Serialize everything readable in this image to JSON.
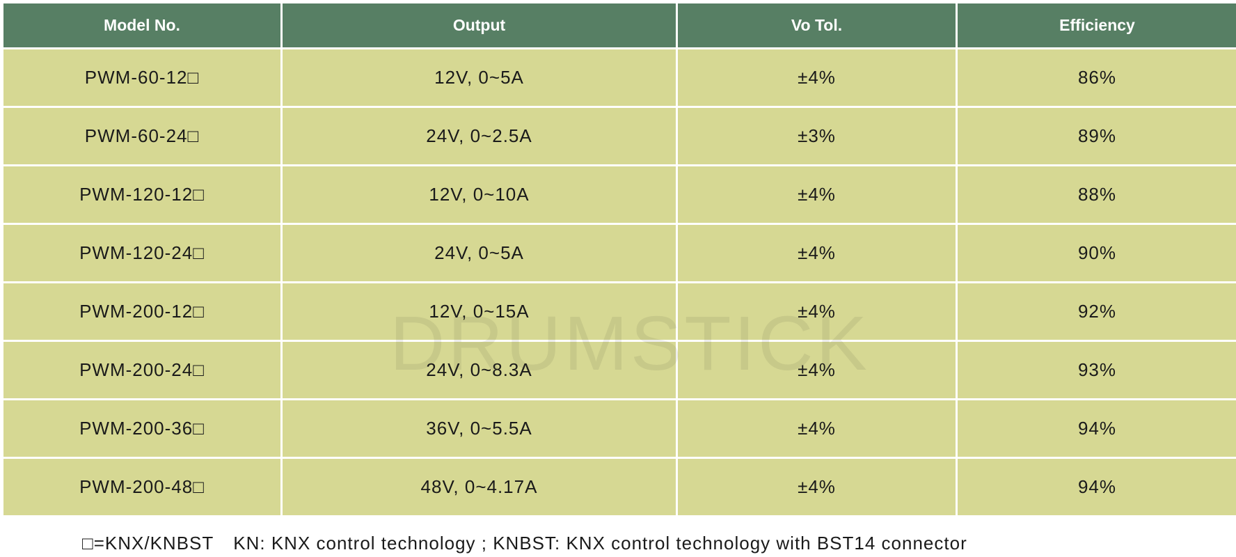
{
  "table": {
    "header": [
      "Model No.",
      "Output",
      "Vo Tol.",
      "Efficiency"
    ],
    "rows": [
      [
        "PWM-60-12□",
        "12V,  0~5A",
        "±4%",
        "86%"
      ],
      [
        "PWM-60-24□",
        "24V, 0~2.5A",
        "±3%",
        "89%"
      ],
      [
        "PWM-120-12□",
        "12V, 0~10A",
        "±4%",
        "88%"
      ],
      [
        "PWM-120-24□",
        "24V, 0~5A",
        "±4%",
        "90%"
      ],
      [
        "PWM-200-12□",
        "12V,  0~15A",
        "±4%",
        "92%"
      ],
      [
        "PWM-200-24□",
        "24V, 0~8.3A",
        "±4%",
        "93%"
      ],
      [
        "PWM-200-36□",
        "36V, 0~5.5A",
        "±4%",
        "94%"
      ],
      [
        "PWM-200-48□",
        "48V, 0~4.17A",
        "±4%",
        "94%"
      ]
    ]
  },
  "watermark": "DRUMSTICK",
  "footnote": {
    "legend": "□=KNX/KNBST",
    "text": "KN: KNX control technology ; KNBST: KNX control technology with BST14 connector"
  }
}
